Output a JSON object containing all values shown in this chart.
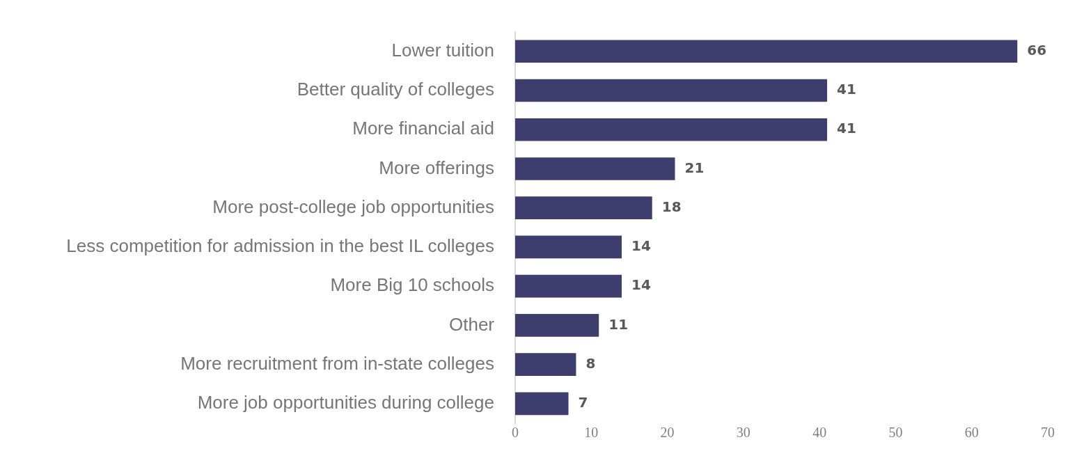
{
  "chart_data": {
    "type": "bar",
    "orientation": "horizontal",
    "categories": [
      "Lower tuition",
      "Better quality of colleges",
      "More financial aid",
      "More offerings",
      "More post-college job opportunities",
      "Less competition for admission in the best IL colleges",
      "More Big 10 schools",
      "Other",
      "More recruitment from in-state colleges",
      "More job opportunities during college"
    ],
    "values": [
      66,
      41,
      41,
      21,
      18,
      14,
      14,
      11,
      8,
      7
    ],
    "color": "#3d3d6e",
    "xlim": [
      0,
      70
    ],
    "xticks": [
      0,
      10,
      20,
      30,
      40,
      50,
      60,
      70
    ],
    "grid": false,
    "legend": false,
    "data_labels": true
  }
}
